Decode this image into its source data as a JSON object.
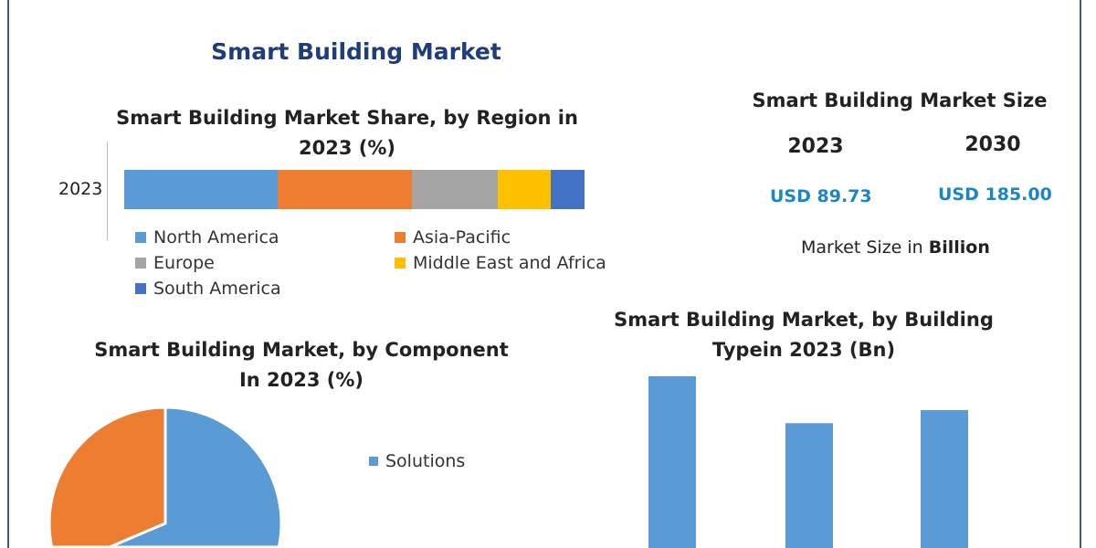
{
  "title": "Smart Building Market",
  "market_size": {
    "title": "Smart Building Market Size",
    "years": [
      "2023",
      "2030"
    ],
    "values": [
      "USD 89.73",
      "USD 185.00"
    ],
    "unit_prefix": "Market Size in ",
    "unit": "Billion"
  },
  "chart_data": [
    {
      "type": "bar",
      "orientation": "horizontal-stacked",
      "title_line1": "Smart Building Market Share, by Region in",
      "title_line2": "2023 (%)",
      "categories": [
        "2023"
      ],
      "series": [
        {
          "name": "North America",
          "values": [
            33.3
          ],
          "color": "#5b9bd5"
        },
        {
          "name": "Asia-Pacific",
          "values": [
            29.2
          ],
          "color": "#ed7d31"
        },
        {
          "name": "Europe",
          "values": [
            18.7
          ],
          "color": "#a5a5a5"
        },
        {
          "name": "Middle East and Africa",
          "values": [
            11.5
          ],
          "color": "#ffc000"
        },
        {
          "name": "South America",
          "values": [
            7.3
          ],
          "color": "#4472c4"
        }
      ],
      "legend": "bottom"
    },
    {
      "type": "pie",
      "title_line1": "Smart Building Market, by Component",
      "title_line2": "In 2023 (%)",
      "slices": [
        {
          "name": "Solutions",
          "value": 58,
          "color": "#5b9bd5"
        },
        {
          "value": 42,
          "color": "#ed7d31"
        }
      ],
      "legend": "right"
    },
    {
      "type": "bar",
      "title_line1": "Smart Building Market, by Building",
      "title_line2": "Typein 2023 (Bn)",
      "values": [
        40,
        31,
        33.5
      ],
      "color": "#5b9bd5"
    }
  ]
}
